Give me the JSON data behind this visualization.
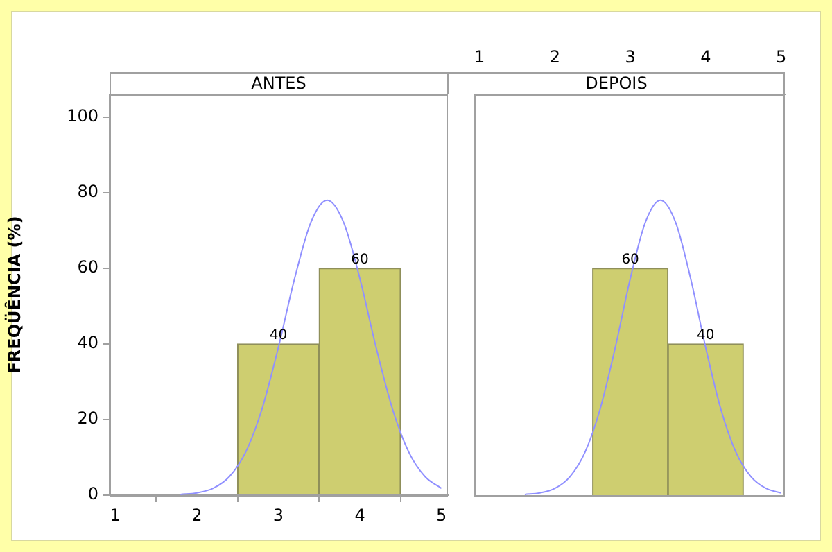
{
  "chart_data": [
    {
      "type": "histogram",
      "title": "ANTES",
      "ylabel": "FREQÜÊNCIA (%)",
      "bins": [
        2.5,
        3.5,
        4.5
      ],
      "values": [
        40,
        60
      ],
      "color": "#cece70",
      "value_labels": [
        "40",
        "60"
      ],
      "series": [
        {
          "type": "line",
          "color": "#9090ff",
          "x": [
            1.8,
            2.0,
            2.2,
            2.4,
            2.6,
            2.8,
            3.0,
            3.2,
            3.4,
            3.6,
            3.8,
            4.0,
            4.2,
            4.4,
            4.6,
            4.8,
            5.0
          ],
          "values": [
            0.2,
            0.6,
            1.8,
            4.9,
            11.4,
            22.8,
            39,
            57.3,
            72.2,
            78,
            72.2,
            57.3,
            39,
            22.8,
            11.4,
            4.9,
            1.8
          ]
        }
      ],
      "xlim": [
        0.93,
        5.08
      ],
      "xticks": [
        1,
        2,
        3,
        4,
        5
      ],
      "ylim": [
        0,
        106
      ],
      "yticks": [
        0,
        20,
        40,
        60,
        80,
        100
      ],
      "grid": false
    },
    {
      "type": "histogram",
      "title": "DEPOIS",
      "bins": [
        2.5,
        3.5,
        4.5
      ],
      "values": [
        60,
        40
      ],
      "color": "#cece70",
      "value_labels": [
        "60",
        "40"
      ],
      "series": [
        {
          "type": "line",
          "color": "#9090ff",
          "x": [
            1.6,
            1.8,
            2.0,
            2.2,
            2.4,
            2.6,
            2.8,
            3.0,
            3.2,
            3.4,
            3.6,
            3.8,
            4.0,
            4.2,
            4.4,
            4.6,
            4.8,
            5.0
          ],
          "values": [
            0.2,
            0.6,
            1.8,
            4.9,
            11.4,
            22.8,
            39,
            57.3,
            72.2,
            78,
            72.2,
            57.3,
            39,
            22.8,
            11.4,
            4.9,
            1.8,
            0.6
          ]
        }
      ],
      "xlim": [
        0.93,
        5.05
      ],
      "xticks": [
        1,
        2,
        3,
        4,
        5
      ],
      "ylim": [
        0,
        106
      ],
      "yticks": [
        0,
        20,
        40,
        60,
        80,
        100
      ],
      "tick_labels": "x",
      "grid": false
    }
  ]
}
